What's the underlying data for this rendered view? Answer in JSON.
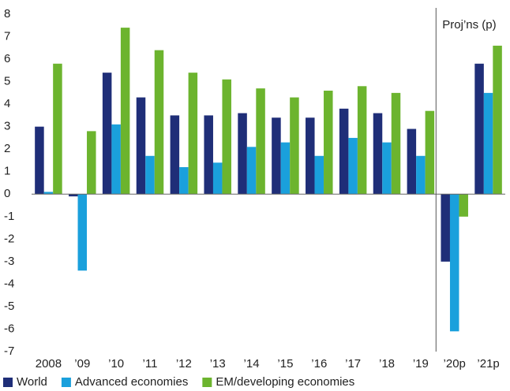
{
  "chart_data": {
    "type": "bar",
    "categories": [
      "2008",
      "’09",
      "’10",
      "’11",
      "’12",
      "’13",
      "’14",
      "’15",
      "’16",
      "’17",
      "’18",
      "’19",
      "’20p",
      "’21p"
    ],
    "series": [
      {
        "name": "World",
        "color": "#1f2e78",
        "values": [
          3.0,
          -0.1,
          5.4,
          4.3,
          3.5,
          3.5,
          3.6,
          3.4,
          3.4,
          3.8,
          3.6,
          2.9,
          -3.0,
          5.8
        ]
      },
      {
        "name": "Advanced economies",
        "color": "#1aa0dc",
        "values": [
          0.1,
          -3.4,
          3.1,
          1.7,
          1.2,
          1.4,
          2.1,
          2.3,
          1.7,
          2.5,
          2.3,
          1.7,
          -6.1,
          4.5
        ]
      },
      {
        "name": "EM/developing economies",
        "color": "#6cb42e",
        "values": [
          5.8,
          2.8,
          7.4,
          6.4,
          5.4,
          5.1,
          4.7,
          4.3,
          4.6,
          4.8,
          4.5,
          3.7,
          -1.0,
          6.6
        ]
      }
    ],
    "annotation": "Proj’ns (p)",
    "ylim": [
      -7,
      8
    ],
    "yticks": [
      -7,
      -6,
      -5,
      -4,
      -3,
      -2,
      -1,
      0,
      1,
      2,
      3,
      4,
      5,
      6,
      7,
      8
    ],
    "grid": false,
    "legend": "bottom"
  }
}
